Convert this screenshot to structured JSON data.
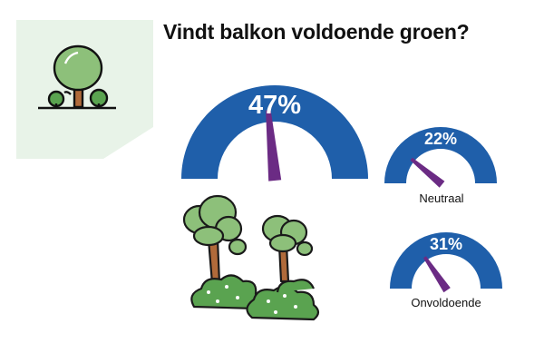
{
  "title": "Vindt balkon voldoende groen?",
  "colors": {
    "track": "#1f5faa",
    "needle": "#6b2b84",
    "badge_bg": "#e8f3e8",
    "tree_green": "#8dc07a",
    "bush_green": "#5aa350",
    "trunk": "#b06a3a"
  },
  "icons": [
    "tree-badge-icon",
    "forest-illustration-icon"
  ],
  "chart_data": {
    "type": "gauge",
    "ylim": [
      0,
      100
    ],
    "categories": [
      "",
      "Neutraal",
      "Onvoldoende"
    ],
    "values": [
      47,
      22,
      31
    ],
    "value_labels": [
      "47%",
      "22%",
      "31%"
    ]
  }
}
